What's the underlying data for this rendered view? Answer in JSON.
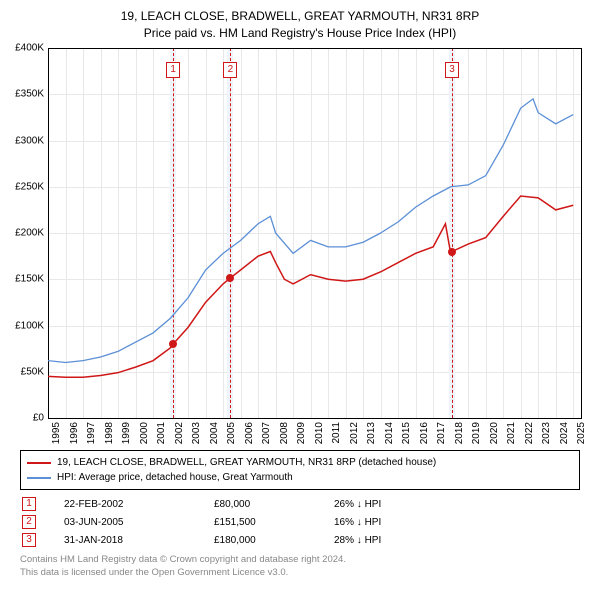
{
  "title": {
    "line1": "19, LEACH CLOSE, BRADWELL, GREAT YARMOUTH, NR31 8RP",
    "line2": "Price paid vs. HM Land Registry's House Price Index (HPI)"
  },
  "chart": {
    "type": "line",
    "background_color": "#ffffff",
    "grid_color": "#e8e8e8",
    "axis_color": "#000000",
    "xlim": [
      1995,
      2025.5
    ],
    "ylim": [
      0,
      400000
    ],
    "y_ticks": [
      {
        "v": 0,
        "label": "£0"
      },
      {
        "v": 50000,
        "label": "£50K"
      },
      {
        "v": 100000,
        "label": "£100K"
      },
      {
        "v": 150000,
        "label": "£150K"
      },
      {
        "v": 200000,
        "label": "£200K"
      },
      {
        "v": 250000,
        "label": "£250K"
      },
      {
        "v": 300000,
        "label": "£300K"
      },
      {
        "v": 350000,
        "label": "£350K"
      },
      {
        "v": 400000,
        "label": "£400K"
      }
    ],
    "x_ticks": [
      1995,
      1996,
      1997,
      1998,
      1999,
      2000,
      2001,
      2002,
      2003,
      2004,
      2005,
      2006,
      2007,
      2008,
      2009,
      2010,
      2011,
      2012,
      2013,
      2014,
      2015,
      2016,
      2017,
      2018,
      2019,
      2020,
      2021,
      2022,
      2023,
      2024,
      2025
    ],
    "transactions": [
      {
        "num": "1",
        "x": 2002.15,
        "band_width": 0.35
      },
      {
        "num": "2",
        "x": 2005.42,
        "band_width": 0.35
      },
      {
        "num": "3",
        "x": 2018.08,
        "band_width": 0.35
      }
    ],
    "series": [
      {
        "name": "price_paid",
        "color": "#d01717",
        "width": 1.5,
        "points": [
          [
            1995,
            45000
          ],
          [
            1996,
            44000
          ],
          [
            1997,
            44000
          ],
          [
            1998,
            46000
          ],
          [
            1999,
            49000
          ],
          [
            2000,
            55000
          ],
          [
            2001,
            62000
          ],
          [
            2002,
            76000
          ],
          [
            2002.15,
            80000
          ],
          [
            2003,
            98000
          ],
          [
            2004,
            125000
          ],
          [
            2005,
            145000
          ],
          [
            2005.42,
            151500
          ],
          [
            2006,
            160000
          ],
          [
            2007,
            175000
          ],
          [
            2007.7,
            180000
          ],
          [
            2008,
            168000
          ],
          [
            2008.5,
            150000
          ],
          [
            2009,
            145000
          ],
          [
            2010,
            155000
          ],
          [
            2011,
            150000
          ],
          [
            2012,
            148000
          ],
          [
            2013,
            150000
          ],
          [
            2014,
            158000
          ],
          [
            2015,
            168000
          ],
          [
            2016,
            178000
          ],
          [
            2017,
            185000
          ],
          [
            2017.7,
            210000
          ],
          [
            2018,
            178000
          ],
          [
            2018.08,
            180000
          ],
          [
            2019,
            188000
          ],
          [
            2020,
            195000
          ],
          [
            2021,
            218000
          ],
          [
            2022,
            240000
          ],
          [
            2023,
            238000
          ],
          [
            2024,
            225000
          ],
          [
            2025,
            230000
          ]
        ],
        "markers": [
          {
            "x": 2002.15,
            "y": 80000
          },
          {
            "x": 2005.42,
            "y": 151500
          },
          {
            "x": 2018.08,
            "y": 180000
          }
        ]
      },
      {
        "name": "hpi",
        "color": "#5b8fd6",
        "width": 1.3,
        "points": [
          [
            1995,
            62000
          ],
          [
            1996,
            60000
          ],
          [
            1997,
            62000
          ],
          [
            1998,
            66000
          ],
          [
            1999,
            72000
          ],
          [
            2000,
            82000
          ],
          [
            2001,
            92000
          ],
          [
            2002,
            108000
          ],
          [
            2003,
            130000
          ],
          [
            2004,
            160000
          ],
          [
            2005,
            178000
          ],
          [
            2006,
            192000
          ],
          [
            2007,
            210000
          ],
          [
            2007.7,
            218000
          ],
          [
            2008,
            200000
          ],
          [
            2009,
            178000
          ],
          [
            2010,
            192000
          ],
          [
            2011,
            185000
          ],
          [
            2012,
            185000
          ],
          [
            2013,
            190000
          ],
          [
            2014,
            200000
          ],
          [
            2015,
            212000
          ],
          [
            2016,
            228000
          ],
          [
            2017,
            240000
          ],
          [
            2018,
            250000
          ],
          [
            2019,
            252000
          ],
          [
            2020,
            262000
          ],
          [
            2021,
            295000
          ],
          [
            2022,
            335000
          ],
          [
            2022.7,
            345000
          ],
          [
            2023,
            330000
          ],
          [
            2024,
            318000
          ],
          [
            2025,
            328000
          ]
        ]
      }
    ]
  },
  "legend": {
    "items": [
      {
        "color": "#d01717",
        "label": "19, LEACH CLOSE, BRADWELL, GREAT YARMOUTH, NR31 8RP (detached house)"
      },
      {
        "color": "#5b8fd6",
        "label": "HPI: Average price, detached house, Great Yarmouth"
      }
    ]
  },
  "tx_table": {
    "rows": [
      {
        "num": "1",
        "date": "22-FEB-2002",
        "price": "£80,000",
        "diff": "26% ↓ HPI"
      },
      {
        "num": "2",
        "date": "03-JUN-2005",
        "price": "£151,500",
        "diff": "16% ↓ HPI"
      },
      {
        "num": "3",
        "date": "31-JAN-2018",
        "price": "£180,000",
        "diff": "28% ↓ HPI"
      }
    ]
  },
  "footer": {
    "line1": "Contains HM Land Registry data © Crown copyright and database right 2024.",
    "line2": "This data is licensed under the Open Government Licence v3.0."
  }
}
